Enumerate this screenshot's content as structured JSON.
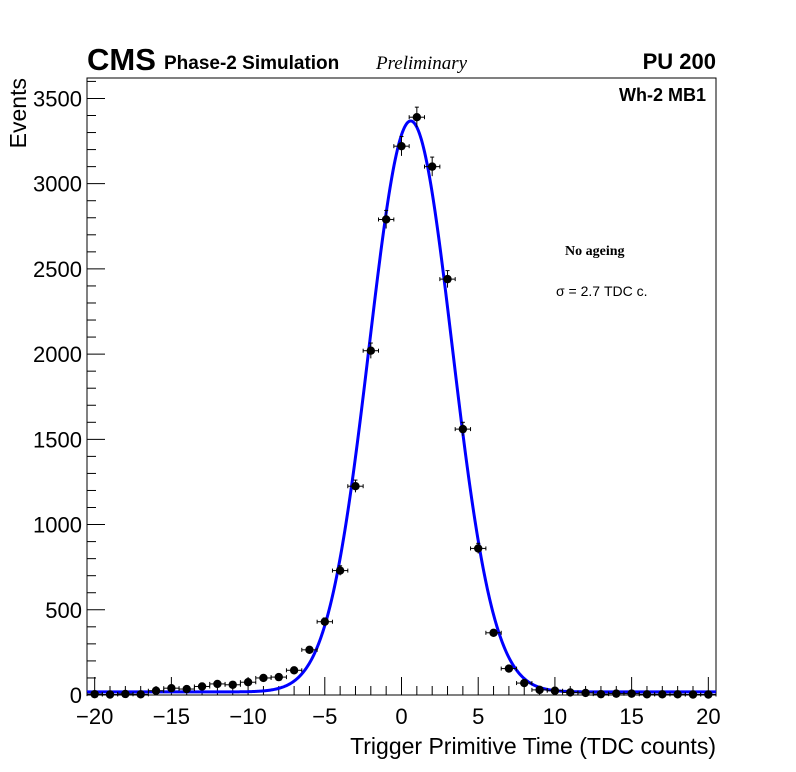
{
  "chart_data": {
    "type": "scatter",
    "title": "",
    "xlabel": "Trigger Primitive Time (TDC counts)",
    "ylabel": "Events",
    "xlim": [
      -20.5,
      20.5
    ],
    "ylim": [
      0,
      3620
    ],
    "x_ticks": [
      -20,
      -15,
      -10,
      -5,
      0,
      5,
      10,
      15,
      20
    ],
    "x_tick_labels": [
      "−20",
      "−15",
      "−10",
      "−5",
      "0",
      "5",
      "10",
      "15",
      "20"
    ],
    "y_ticks": [
      0,
      500,
      1000,
      1500,
      2000,
      2500,
      3000,
      3500
    ],
    "y_tick_labels": [
      "0",
      "500",
      "1000",
      "1500",
      "2000",
      "2500",
      "3000",
      "3500"
    ],
    "grid": false,
    "labels": {
      "cms": "CMS",
      "sim": "Phase-2 Simulation",
      "prelim": "Preliminary",
      "pu": "PU 200",
      "chamber": "Wh-2 MB1",
      "ageing": "No ageing",
      "sigma": "σ = 2.7 TDC c."
    },
    "colors": {
      "fit": "#0000ff",
      "points": "#000000"
    },
    "series": [
      {
        "name": "Data",
        "x": [
          -20,
          -19,
          -18,
          -17,
          -16,
          -15,
          -14,
          -13,
          -12,
          -11,
          -10,
          -9,
          -8,
          -7,
          -6,
          -5,
          -4,
          -3,
          -2,
          -1,
          0,
          1,
          2,
          3,
          4,
          5,
          6,
          7,
          8,
          9,
          10,
          11,
          12,
          13,
          14,
          15,
          16,
          17,
          18,
          19,
          20
        ],
        "values": [
          5,
          3,
          6,
          4,
          25,
          40,
          35,
          50,
          65,
          60,
          75,
          100,
          105,
          145,
          265,
          430,
          730,
          1225,
          2020,
          2790,
          3220,
          3390,
          3100,
          2440,
          1560,
          860,
          365,
          155,
          70,
          30,
          25,
          15,
          12,
          5,
          8,
          8,
          4,
          4,
          4,
          3,
          3
        ],
        "errors": [
          3,
          3,
          3,
          3,
          6,
          7,
          6,
          8,
          9,
          8,
          9,
          11,
          11,
          13,
          17,
          22,
          28,
          36,
          45,
          53,
          57,
          59,
          56,
          50,
          40,
          30,
          19,
          13,
          9,
          6,
          5,
          4,
          4,
          3,
          3,
          3,
          2,
          2,
          2,
          2,
          2
        ]
      },
      {
        "name": "Gaussian fit",
        "function": "gaussian_plus_constant",
        "amplitude": 3350,
        "mean": 0.6,
        "sigma": 2.7,
        "constant": 18,
        "x_range": [
          -20.5,
          20.5
        ]
      }
    ]
  }
}
